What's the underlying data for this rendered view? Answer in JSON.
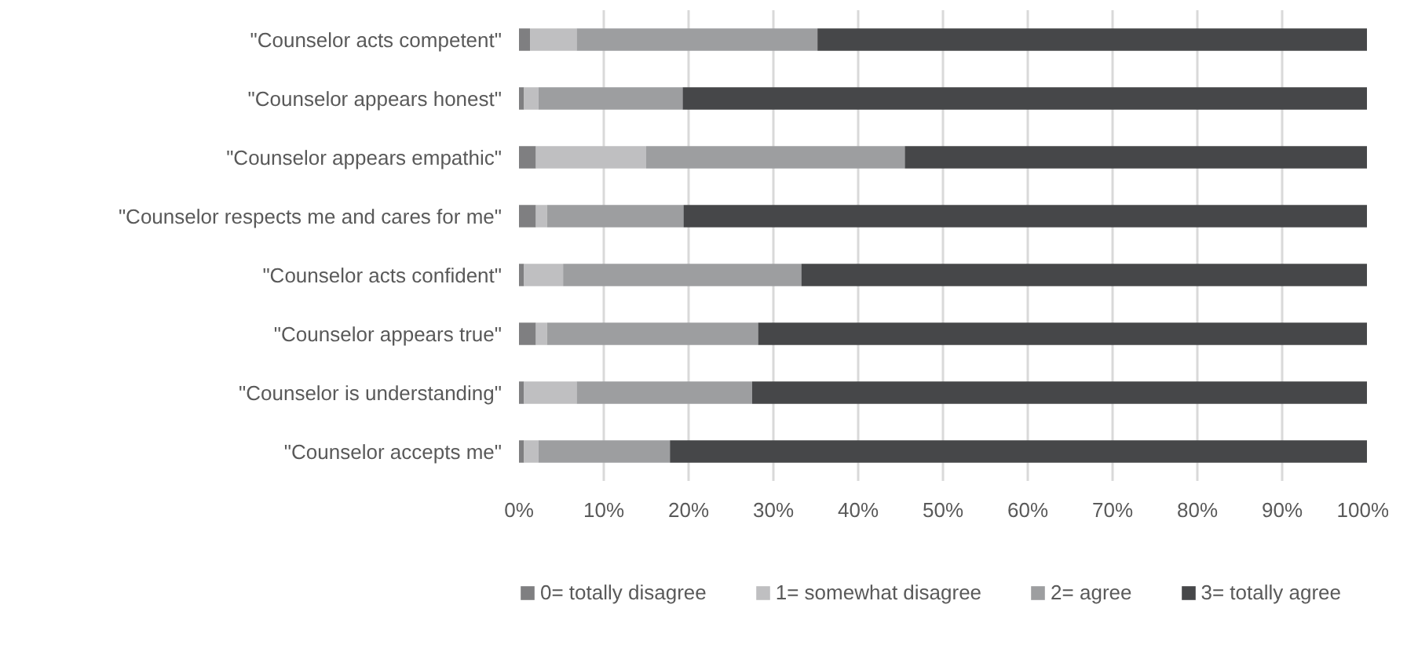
{
  "chart_data": {
    "type": "bar",
    "orientation": "horizontal",
    "stacked": true,
    "categories": [
      "\"Counselor acts competent\"",
      "\"Counselor appears honest\"",
      "\"Counselor appears empathic\"",
      "\"Counselor respects me and cares for me\"",
      "\"Counselor acts confident\"",
      "\"Counselor appears true\"",
      "\"Counselor is understanding\"",
      "\"Counselor accepts me\""
    ],
    "series": [
      {
        "name": "0= totally disagree",
        "color": "#7f7f81",
        "values": [
          1.3,
          0.6,
          2.0,
          2.0,
          0.6,
          2.0,
          0.6,
          0.6
        ]
      },
      {
        "name": "1= somewhat disagree",
        "color": "#bfbfc1",
        "values": [
          5.5,
          1.7,
          13.0,
          1.3,
          4.6,
          1.3,
          6.2,
          1.7
        ]
      },
      {
        "name": "2= agree",
        "color": "#9d9ea0",
        "values": [
          28.4,
          17.0,
          30.5,
          16.1,
          28.1,
          24.9,
          20.7,
          15.5
        ]
      },
      {
        "name": "3= totally agree",
        "color": "#464749",
        "values": [
          64.8,
          80.7,
          54.5,
          80.6,
          66.7,
          71.8,
          72.5,
          82.2
        ]
      }
    ],
    "xlim": [
      0,
      100
    ],
    "xticks": [
      {
        "value": 0,
        "label": "0%"
      },
      {
        "value": 10,
        "label": "10%"
      },
      {
        "value": 20,
        "label": "20%"
      },
      {
        "value": 30,
        "label": "30%"
      },
      {
        "value": 40,
        "label": "40%"
      },
      {
        "value": 50,
        "label": "50%"
      },
      {
        "value": 60,
        "label": "60%"
      },
      {
        "value": 70,
        "label": "70%"
      },
      {
        "value": 80,
        "label": "80%"
      },
      {
        "value": 90,
        "label": "90%"
      },
      {
        "value": 100,
        "label": "100%"
      }
    ],
    "grid": "x",
    "legend": "bottom"
  }
}
